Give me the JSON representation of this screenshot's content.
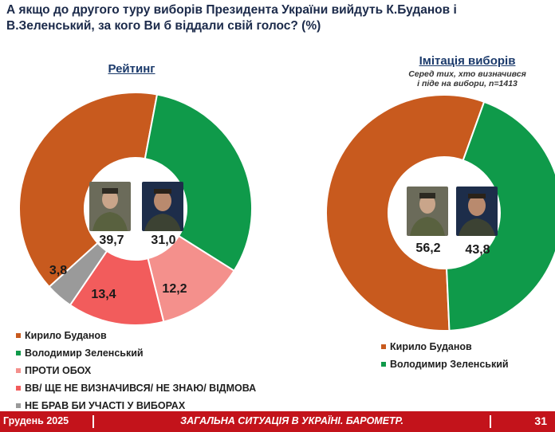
{
  "title": "А якщо до другого туру виборів Президента України вийдуть К.Буданов і В.Зеленський, за кого Ви б віддали свій голос? (%)",
  "panels": {
    "left": {
      "title": "Рейтинг"
    },
    "right": {
      "title": "Імітація виборів",
      "note_line1": "Серед тих, хто визначився",
      "note_line2": "і піде на вибори, n=1413"
    }
  },
  "colors": {
    "budanov": "#c85a1e",
    "zelensky": "#0f9a4a",
    "against": "#f4908c",
    "undecided": "#f25c5c",
    "not_voting": "#9a9a9a"
  },
  "chart_data": [
    {
      "type": "pie",
      "title": "Рейтинг",
      "variant": "donut",
      "categories": [
        "Кирило Буданов",
        "Володимир Зеленський",
        "ПРОТИ ОБОХ",
        "ВВ/ ЩЕ НЕ ВИЗНАЧИВСЯ/ НЕ ЗНАЮ/ ВІДМОВА",
        "НЕ БРАВ БИ УЧАСТІ У ВИБОРАХ"
      ],
      "values": [
        39.7,
        31.0,
        12.2,
        13.4,
        3.8
      ],
      "labels": [
        "39,7",
        "31,0",
        "12,2",
        "13,4",
        "3,8"
      ],
      "colors": [
        "#c85a1e",
        "#0f9a4a",
        "#f4908c",
        "#f25c5c",
        "#9a9a9a"
      ],
      "legend": "bottom-left"
    },
    {
      "type": "pie",
      "title": "Імітація виборів",
      "variant": "donut",
      "categories": [
        "Кирило Буданов",
        "Володимир Зеленський"
      ],
      "values": [
        56.2,
        43.8
      ],
      "labels": [
        "56,2",
        "43,8"
      ],
      "colors": [
        "#c85a1e",
        "#0f9a4a"
      ],
      "legend": "bottom"
    }
  ],
  "legend_left": [
    {
      "label": "Кирило Буданов",
      "color": "#c85a1e"
    },
    {
      "label": "Володимир Зеленський",
      "color": "#0f9a4a"
    },
    {
      "label": "ПРОТИ ОБОХ",
      "color": "#f4908c"
    },
    {
      "label": "ВВ/ ЩЕ НЕ ВИЗНАЧИВСЯ/ НЕ ЗНАЮ/ ВІДМОВА",
      "color": "#f25c5c"
    },
    {
      "label": "НЕ БРАВ БИ УЧАСТІ У ВИБОРАХ",
      "color": "#9a9a9a"
    }
  ],
  "legend_right": [
    {
      "label": "Кирило Буданов",
      "color": "#c85a1e"
    },
    {
      "label": "Володимир Зеленський",
      "color": "#0f9a4a"
    }
  ],
  "footer": {
    "date": "Грудень 2025",
    "center": "ЗАГАЛЬНА СИТУАЦІЯ В УКРАЇНІ. БАРОМЕТР.",
    "page": "31"
  }
}
